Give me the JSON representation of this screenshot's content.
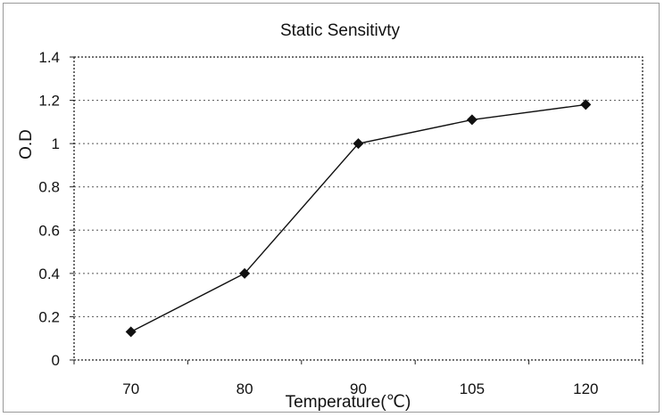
{
  "chart_data": {
    "type": "line",
    "title": "Static Sensitivty",
    "xlabel": "Temperature(℃)",
    "ylabel": "O.D",
    "categories": [
      "70",
      "80",
      "90",
      "105",
      "120"
    ],
    "series": [
      {
        "values": [
          0.13,
          0.4,
          1.0,
          1.11,
          1.18
        ]
      }
    ],
    "ylim": [
      0,
      1.4
    ],
    "yticks": [
      "0",
      "0.2",
      "0.4",
      "0.6",
      "0.8",
      "1",
      "1.2",
      "1.4"
    ],
    "grid": true,
    "marker": "diamond",
    "colors": {
      "line": "#111111",
      "grid": "#555555",
      "background": "#ffffff"
    }
  }
}
